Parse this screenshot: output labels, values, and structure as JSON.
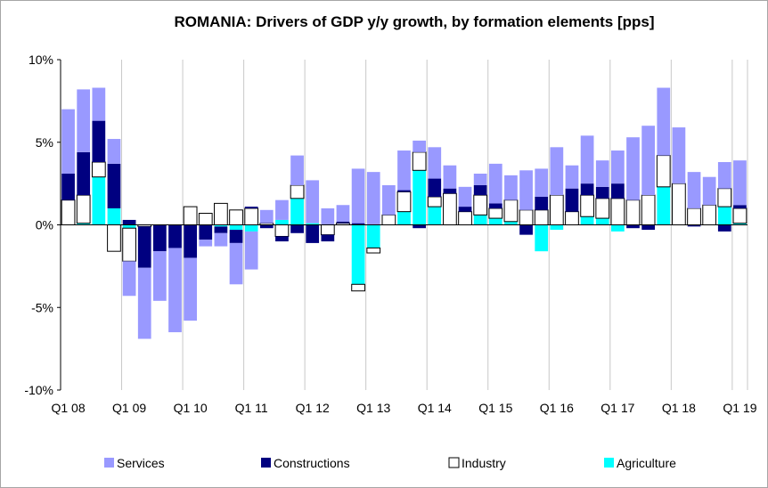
{
  "chart_data": {
    "type": "bar",
    "stacked": true,
    "title": "ROMANIA: Drivers of GDP y/y growth, by formation elements [pps]",
    "xlabel": "",
    "ylabel": "",
    "ylim": [
      -10,
      10
    ],
    "y_ticks": [
      -10,
      -5,
      0,
      5,
      10
    ],
    "y_tick_labels": [
      "-10%",
      "-5%",
      "0%",
      "5%",
      "10%"
    ],
    "x_tick_labels": [
      "Q1 08",
      "Q1 09",
      "Q1 10",
      "Q1 11",
      "Q1 12",
      "Q1 13",
      "Q1 14",
      "Q1 15",
      "Q1 16",
      "Q1 17",
      "Q1 18",
      "Q1 19"
    ],
    "grid": "vertical",
    "legend_position": "bottom",
    "categories": [
      "Q1 08",
      "Q2 08",
      "Q3 08",
      "Q4 08",
      "Q1 09",
      "Q2 09",
      "Q3 09",
      "Q4 09",
      "Q1 10",
      "Q2 10",
      "Q3 10",
      "Q4 10",
      "Q1 11",
      "Q2 11",
      "Q3 11",
      "Q4 11",
      "Q1 12",
      "Q2 12",
      "Q3 12",
      "Q4 12",
      "Q1 13",
      "Q2 13",
      "Q3 13",
      "Q4 13",
      "Q1 14",
      "Q2 14",
      "Q3 14",
      "Q4 14",
      "Q1 15",
      "Q2 15",
      "Q3 15",
      "Q4 15",
      "Q1 16",
      "Q2 16",
      "Q3 16",
      "Q4 16",
      "Q1 17",
      "Q2 17",
      "Q3 17",
      "Q4 17",
      "Q1 18",
      "Q2 18",
      "Q3 18",
      "Q4 18",
      "Q1 19"
    ],
    "series": [
      {
        "name": "Agriculture",
        "color": "#00ffff",
        "values": [
          0.0,
          0.1,
          2.9,
          1.0,
          -0.2,
          0.0,
          0.0,
          0.0,
          0.0,
          0.0,
          -0.1,
          -0.3,
          -0.4,
          0.0,
          0.3,
          1.6,
          0.1,
          0.0,
          0.0,
          -3.6,
          -1.4,
          0.0,
          0.8,
          3.3,
          1.1,
          0.0,
          0.0,
          0.6,
          0.4,
          0.2,
          0.0,
          -1.6,
          -0.3,
          0.0,
          0.5,
          0.4,
          -0.4,
          0.0,
          0.0,
          2.3,
          0.0,
          0.0,
          0.0,
          1.1,
          0.1
        ]
      },
      {
        "name": "Industry",
        "color": "#ffffff",
        "values": [
          1.5,
          1.7,
          0.9,
          -1.6,
          -2.0,
          -0.1,
          0.0,
          0.0,
          1.1,
          0.7,
          1.3,
          0.9,
          1.0,
          0.1,
          -0.7,
          0.8,
          0.0,
          -0.6,
          0.1,
          -0.4,
          -0.3,
          0.6,
          1.2,
          1.1,
          0.6,
          1.9,
          0.8,
          1.2,
          0.6,
          1.3,
          0.9,
          0.9,
          1.8,
          0.8,
          1.3,
          1.2,
          1.6,
          1.5,
          1.8,
          1.9,
          2.5,
          1.0,
          1.2,
          1.1,
          0.9
        ]
      },
      {
        "name": "Constructions",
        "color": "#000080",
        "values": [
          1.6,
          2.6,
          2.5,
          2.7,
          0.3,
          -2.5,
          -1.6,
          -1.4,
          -2.0,
          -0.9,
          -0.4,
          -0.8,
          0.1,
          -0.2,
          -0.3,
          -0.5,
          -1.1,
          -0.4,
          0.1,
          0.1,
          0.0,
          0.0,
          0.1,
          -0.2,
          1.1,
          0.3,
          0.3,
          0.6,
          0.3,
          0.0,
          -0.6,
          0.8,
          0.0,
          1.4,
          0.7,
          0.7,
          0.9,
          -0.2,
          -0.3,
          0.0,
          0.0,
          -0.1,
          0.0,
          -0.4,
          0.2
        ]
      },
      {
        "name": "Services",
        "color": "#9999ff",
        "values": [
          3.9,
          3.8,
          2.0,
          1.5,
          -2.1,
          -4.3,
          -3.0,
          -5.1,
          -3.8,
          -0.4,
          -0.8,
          -2.5,
          -2.3,
          0.8,
          1.2,
          1.8,
          2.6,
          1.0,
          1.0,
          3.3,
          3.2,
          1.8,
          2.4,
          0.7,
          1.9,
          1.4,
          1.2,
          0.7,
          2.4,
          1.5,
          2.4,
          1.7,
          2.9,
          1.4,
          2.9,
          1.6,
          2.0,
          3.8,
          4.2,
          4.1,
          3.4,
          2.2,
          1.7,
          1.6,
          2.7
        ]
      }
    ]
  },
  "legend": {
    "items": [
      {
        "label": "Services",
        "color": "#9999ff"
      },
      {
        "label": "Constructions",
        "color": "#000080"
      },
      {
        "label": "Industry",
        "color": "#ffffff"
      },
      {
        "label": "Agriculture",
        "color": "#00ffff"
      }
    ]
  }
}
